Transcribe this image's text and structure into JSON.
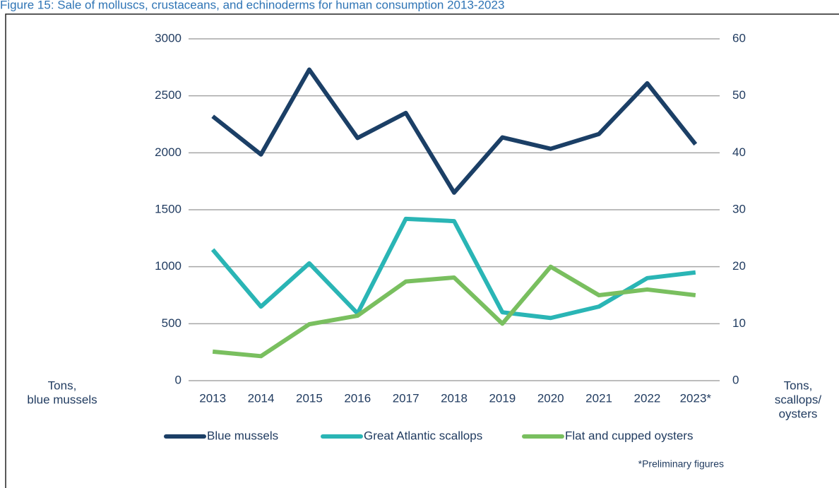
{
  "chart_data": {
    "type": "line",
    "title": "Figure 15: Sale of molluscs, crustaceans, and echinoderms for human consumption 2013-2023",
    "categories": [
      "2013",
      "2014",
      "2015",
      "2016",
      "2017",
      "2018",
      "2019",
      "2020",
      "2021",
      "2022",
      "2023*"
    ],
    "series": [
      {
        "name": "Blue mussels",
        "color": "#1b3f66",
        "values": [
          2320,
          1985,
          2730,
          2130,
          2350,
          1650,
          2135,
          2035,
          2165,
          2610,
          2075
        ]
      },
      {
        "name": "Great Atlantic scallops",
        "color": "#2ab5b5",
        "axis": "y2",
        "values": [
          23,
          13,
          20.6,
          11.8,
          28.4,
          28,
          12,
          11,
          13,
          18,
          19
        ]
      },
      {
        "name": "Flat and cupped oysters",
        "color": "#79bf5f",
        "axis": "y2",
        "values": [
          5.1,
          4.3,
          9.9,
          11.4,
          17.4,
          18.1,
          10,
          20,
          15,
          16,
          15
        ]
      }
    ],
    "ylabel": [
      "Tons,",
      "blue mussels"
    ],
    "y2label": [
      "Tons,",
      "scallops/",
      "oysters"
    ],
    "ylim": [
      0,
      3000
    ],
    "yticks": [
      0,
      500,
      1000,
      1500,
      2000,
      2500,
      3000
    ],
    "y2lim": [
      0,
      60
    ],
    "y2ticks": [
      0,
      10,
      20,
      30,
      40,
      50,
      60
    ],
    "grid": true,
    "legend": "bottom",
    "footnote": "*Preliminary figures"
  }
}
